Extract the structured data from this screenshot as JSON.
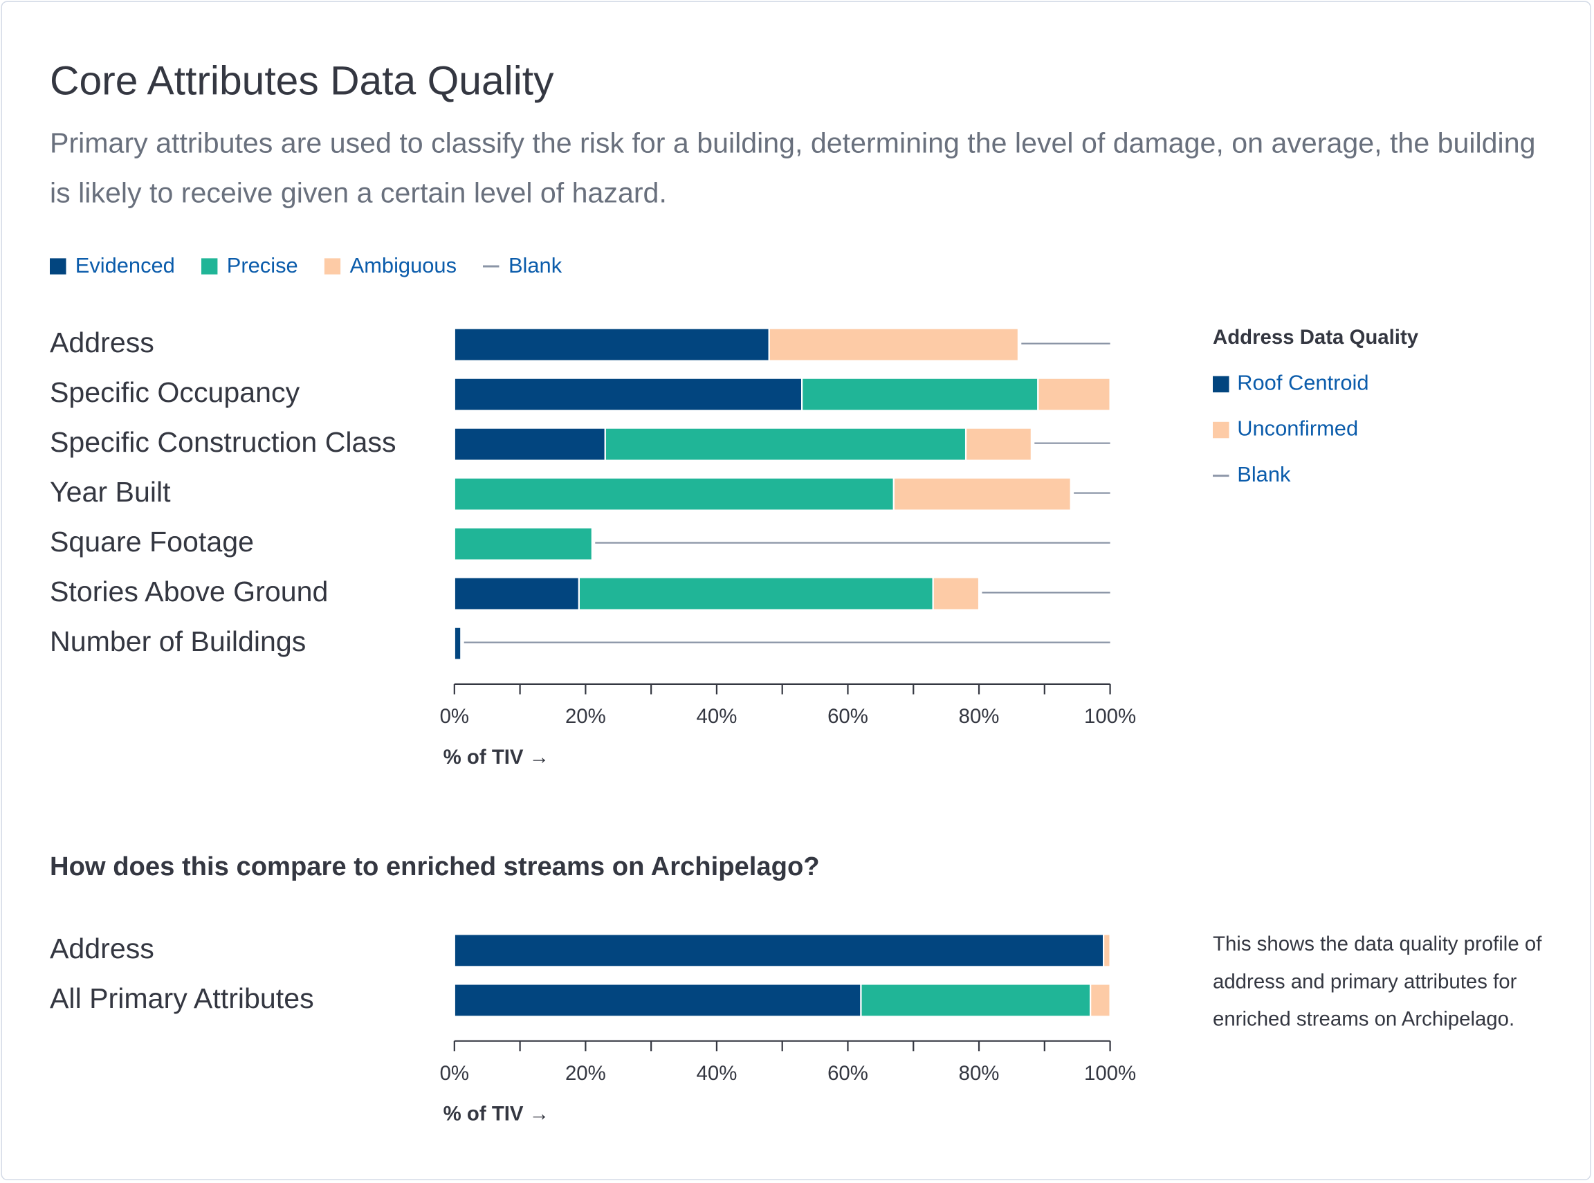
{
  "header": {
    "title": "Core Attributes Data Quality",
    "subtitle": "Primary attributes are used to classify the risk for a building, determining the level of damage, on average, the building is likely to receive given a certain level of hazard."
  },
  "chart_data": [
    {
      "type": "stacked-bar-horizontal",
      "categories": [
        "Address",
        "Specific Occupancy",
        "Specific Construction Class",
        "Year Built",
        "Square Footage",
        "Stories Above Ground",
        "Number of Buildings"
      ],
      "series": [
        {
          "name": "Evidenced",
          "color": "#02457f",
          "values": [
            48,
            53,
            23,
            0,
            0,
            19,
            1
          ]
        },
        {
          "name": "Precise",
          "color": "#20b597",
          "values": [
            0,
            36,
            55,
            67,
            21,
            54,
            0
          ]
        },
        {
          "name": "Ambiguous",
          "color": "#fdcba6",
          "values": [
            38,
            11,
            10,
            27,
            0,
            7,
            0
          ]
        },
        {
          "name": "Blank",
          "color": "#8a94a6",
          "mark": "line",
          "values": [
            14,
            0,
            12,
            6,
            79,
            20,
            99
          ]
        }
      ],
      "xlim": [
        0,
        100
      ],
      "xticks": [
        {
          "value": 0,
          "label": "0%"
        },
        {
          "value": 20,
          "label": "20%"
        },
        {
          "value": 40,
          "label": "40%"
        },
        {
          "value": 60,
          "label": "60%"
        },
        {
          "value": 80,
          "label": "80%"
        },
        {
          "value": 100,
          "label": "100%"
        }
      ],
      "xminorticks": [
        10,
        30,
        50,
        70,
        90
      ],
      "xlabel": "% of TIV →",
      "legend": "top",
      "side_legend": {
        "title": "Address Data Quality",
        "items": [
          {
            "name": "Roof Centroid",
            "color": "#02457f"
          },
          {
            "name": "Unconfirmed",
            "color": "#fdcba6"
          },
          {
            "name": "Blank",
            "color": "#8a94a6",
            "mark": "line"
          }
        ]
      }
    },
    {
      "type": "stacked-bar-horizontal",
      "title": "How does this compare to enriched streams on Archipelago?",
      "note": "This shows the data quality profile of address and primary attributes for enriched streams on Archipelago.",
      "categories": [
        "Address",
        "All Primary Attributes"
      ],
      "series": [
        {
          "color": "#02457f",
          "values": [
            99,
            62
          ]
        },
        {
          "color": "#20b597",
          "values": [
            0,
            35
          ]
        },
        {
          "color": "#fdcba6",
          "values": [
            1,
            3
          ]
        }
      ],
      "xlim": [
        0,
        100
      ],
      "xticks": [
        {
          "value": 0,
          "label": "0%"
        },
        {
          "value": 20,
          "label": "20%"
        },
        {
          "value": 40,
          "label": "40%"
        },
        {
          "value": 60,
          "label": "60%"
        },
        {
          "value": 80,
          "label": "80%"
        },
        {
          "value": 100,
          "label": "100%"
        }
      ],
      "xminorticks": [
        10,
        30,
        50,
        70,
        90
      ],
      "xlabel": "% of TIV →"
    }
  ]
}
